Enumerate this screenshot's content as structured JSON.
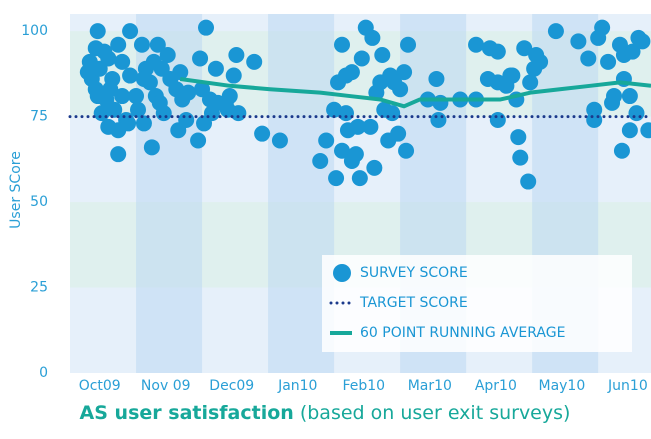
{
  "chart_data": {
    "type": "scatter",
    "title": "AS user satisfaction",
    "subtitle": "(based on user exit surveys)",
    "ylabel": "User SCore",
    "xlim": [
      0,
      8.8
    ],
    "xticks": [
      {
        "value": 0.45,
        "label": "Oct09"
      },
      {
        "value": 1.45,
        "label": "Nov 09"
      },
      {
        "value": 2.45,
        "label": "Dec09"
      },
      {
        "value": 3.45,
        "label": "Jan10"
      },
      {
        "value": 4.45,
        "label": "Feb10"
      },
      {
        "value": 5.45,
        "label": "Mar10"
      },
      {
        "value": 6.45,
        "label": "Apr10"
      },
      {
        "value": 7.45,
        "label": "May10"
      },
      {
        "value": 8.45,
        "label": "Jun10"
      }
    ],
    "ylim": [
      0,
      105
    ],
    "yticks": [
      0,
      25,
      50,
      75,
      100
    ],
    "legend": "bottom-right",
    "series": [
      {
        "name": "SURVEY SCORE",
        "mode": "markers",
        "color": "#1a96d4",
        "x": [
          0.3,
          0.42,
          0.39,
          0.52,
          0.33,
          0.45,
          0.58,
          0.73,
          0.79,
          0.64,
          0.42,
          0.55,
          0.48,
          0.67,
          0.85,
          0.58,
          0.73,
          0.88,
          0.79,
          0.91,
          0.91,
          0.61,
          0.27,
          0.39,
          0.73,
          1.09,
          1.33,
          1.15,
          1.27,
          1.21,
          1.39,
          1.48,
          1.03,
          1.12,
          1.3,
          1.36,
          1.52,
          1.61,
          1.67,
          1.24,
          1.7,
          1.79,
          1.64,
          1.76,
          1.42,
          1.12,
          1.0,
          1.97,
          2.06,
          2.21,
          2.0,
          2.12,
          1.94,
          2.03,
          2.24,
          2.39,
          2.48,
          2.52,
          2.42,
          2.55,
          2.79,
          2.36,
          2.15,
          2.91,
          3.18,
          3.79,
          3.88,
          4.0,
          4.12,
          4.21,
          4.03,
          4.27,
          4.39,
          4.12,
          4.06,
          4.18,
          4.27,
          4.36,
          4.42,
          4.48,
          4.58,
          4.64,
          4.7,
          4.76,
          4.82,
          4.61,
          4.73,
          4.85,
          4.91,
          5.0,
          5.06,
          5.12,
          5.09,
          4.88,
          4.55,
          4.33,
          4.18,
          4.97,
          5.42,
          5.55,
          5.58,
          5.61,
          5.91,
          6.15,
          6.15,
          6.36,
          6.48,
          6.33,
          6.48,
          6.61,
          6.7,
          6.76,
          6.48,
          6.79,
          6.82,
          6.94,
          6.88,
          7.06,
          7.03,
          6.97,
          6.67,
          7.12,
          7.36,
          7.7,
          7.85,
          8.0,
          8.06,
          7.94,
          7.94,
          8.24,
          8.33,
          8.39,
          8.52,
          8.61,
          8.67,
          8.15,
          8.39,
          8.48,
          8.58,
          8.76,
          8.48,
          8.36,
          8.21
        ],
        "values": [
          91,
          100,
          95,
          94,
          86,
          89,
          92,
          96,
          91,
          86,
          81,
          80,
          76,
          77,
          74,
          72,
          64,
          73,
          81,
          87,
          100,
          83,
          88,
          83,
          71,
          96,
          96,
          89,
          91,
          85,
          89,
          93,
          77,
          73,
          81,
          79,
          86,
          83,
          88,
          66,
          80,
          82,
          71,
          74,
          76,
          86,
          81,
          92,
          101,
          89,
          83,
          80,
          68,
          73,
          79,
          77,
          87,
          93,
          81,
          76,
          91,
          79,
          76,
          70,
          68,
          62,
          68,
          77,
          65,
          71,
          57,
          62,
          57,
          96,
          85,
          87,
          88,
          72,
          92,
          101,
          98,
          82,
          85,
          77,
          68,
          60,
          93,
          87,
          85,
          83,
          88,
          96,
          65,
          76,
          72,
          64,
          76,
          70,
          80,
          86,
          74,
          79,
          80,
          80,
          96,
          95,
          94,
          86,
          85,
          84,
          87,
          80,
          74,
          69,
          63,
          56,
          95,
          93,
          89,
          85,
          87,
          91,
          100,
          97,
          92,
          98,
          101,
          77,
          74,
          81,
          96,
          93,
          94,
          98,
          97,
          91,
          86,
          81,
          76,
          71,
          71,
          65,
          79
        ]
      },
      {
        "name": "TARGET SCORE",
        "mode": "dotted",
        "color": "#1b3a8c",
        "x": [
          0,
          8.8
        ],
        "values": [
          75,
          75
        ]
      },
      {
        "name": "60 POINT RUNNING AVERAGE",
        "mode": "line",
        "color": "#17a89a",
        "x": [
          1.67,
          2.42,
          3.03,
          3.79,
          4.24,
          4.7,
          5.06,
          5.3,
          5.91,
          6.52,
          6.97,
          7.42,
          7.88,
          8.33,
          8.8
        ],
        "values": [
          86,
          84,
          83,
          82,
          81,
          80,
          78,
          80,
          80,
          80,
          82,
          83,
          84,
          85,
          84
        ]
      }
    ]
  }
}
